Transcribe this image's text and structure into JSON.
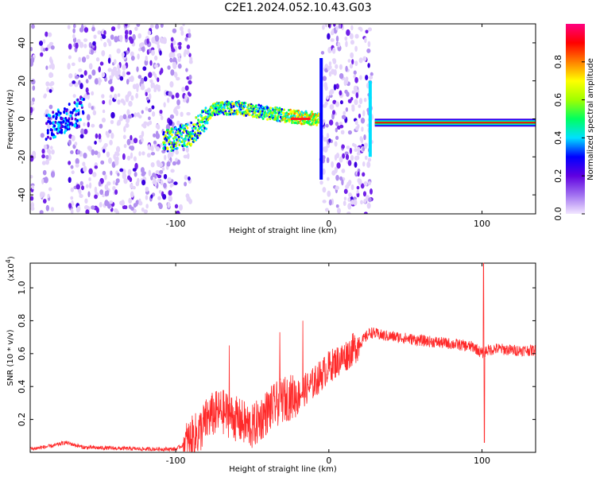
{
  "title": "C2E1.2024.052.10.43.G03",
  "chart_data": [
    {
      "type": "heatmap",
      "xlabel": "Height of straight line (km)",
      "ylabel": "Frequency (Hz)",
      "xlim": [
        -195,
        135
      ],
      "ylim": [
        -50,
        50
      ],
      "x_ticks": [
        -100,
        0,
        100
      ],
      "x_tick_labels": [
        "-100",
        "0",
        "100"
      ],
      "y_ticks": [
        -40,
        -20,
        0,
        20,
        40
      ],
      "y_tick_labels": [
        "-40",
        "-20",
        "0",
        "20",
        "40"
      ],
      "colorbar": {
        "label": "Normalized spectral amplitude",
        "range": [
          0.0,
          1.0
        ],
        "ticks": [
          0.0,
          0.2,
          0.4,
          0.6,
          0.8
        ],
        "tick_labels": [
          "0.0",
          "0.2",
          "0.4",
          "0.6",
          "0.8"
        ],
        "colormap": [
          "#f2e6ff",
          "#a070f0",
          "#6000e0",
          "#0000ff",
          "#00e0ff",
          "#00ff60",
          "#a0ff00",
          "#ffff00",
          "#ff8000",
          "#ff0000",
          "#ff0080"
        ]
      },
      "features": {
        "noise_bands": [
          [
            -195,
            -192
          ],
          [
            -188,
            -180
          ],
          [
            -170,
            -108
          ],
          [
            -108,
            -90
          ],
          [
            -5,
            28
          ]
        ],
        "signal_track": [
          [
            -108,
            -12
          ],
          [
            -90,
            -8
          ],
          [
            -75,
            5
          ],
          [
            -60,
            6
          ],
          [
            -40,
            3
          ],
          [
            -20,
            1
          ],
          [
            -8,
            0
          ],
          [
            30,
            -2
          ],
          [
            135,
            -2
          ]
        ],
        "strong_track": [
          [
            30,
            -2
          ],
          [
            135,
            -2
          ]
        ]
      }
    },
    {
      "type": "line",
      "xlabel": "Height of straight line (km)",
      "ylabel": "SNR (10 * v/v)",
      "y_multiplier": "(x10",
      "y_multiplier_exp": "4",
      "y_multiplier_close": ")",
      "xlim": [
        -195,
        135
      ],
      "ylim": [
        0,
        1.15
      ],
      "x_ticks": [
        -100,
        0,
        100
      ],
      "x_tick_labels": [
        "-100",
        "0",
        "100"
      ],
      "y_ticks": [
        0.2,
        0.4,
        0.6,
        0.8,
        1.0
      ],
      "y_tick_labels": [
        "0.2",
        "0.4",
        "0.6",
        "0.8",
        "1.0"
      ],
      "color": "#ff2a2a",
      "series_keypoints": {
        "x": [
          -195,
          -180,
          -172,
          -160,
          -120,
          -100,
          -92,
          -85,
          -78,
          -70,
          -60,
          -50,
          -40,
          -30,
          -20,
          -10,
          0,
          10,
          20,
          27,
          35,
          45,
          60,
          80,
          95,
          100,
          103,
          110,
          120,
          135
        ],
        "y": [
          0.02,
          0.04,
          0.06,
          0.03,
          0.02,
          0.02,
          0.06,
          0.12,
          0.22,
          0.25,
          0.2,
          0.15,
          0.25,
          0.32,
          0.35,
          0.42,
          0.52,
          0.58,
          0.66,
          0.73,
          0.71,
          0.7,
          0.68,
          0.66,
          0.64,
          0.6,
          0.62,
          0.63,
          0.62,
          0.62
        ]
      },
      "spikes": [
        {
          "x": -65,
          "y": 0.65
        },
        {
          "x": -32,
          "y": 0.73
        },
        {
          "x": -17,
          "y": 0.8
        },
        {
          "x": 101,
          "y": 1.15
        },
        {
          "x": 101.5,
          "y": 0.06
        }
      ]
    }
  ]
}
